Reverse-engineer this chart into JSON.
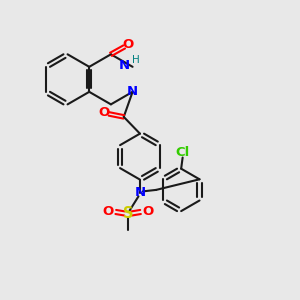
{
  "bg_color": "#e8e8e8",
  "bond_color": "#1a1a1a",
  "N_color": "#0000ff",
  "O_color": "#ff0000",
  "S_color": "#cccc00",
  "Cl_color": "#33cc00",
  "H_color": "#008080",
  "line_width": 1.5,
  "font_size": 9.5,
  "xlim": [
    0,
    10
  ],
  "ylim": [
    0,
    10
  ]
}
